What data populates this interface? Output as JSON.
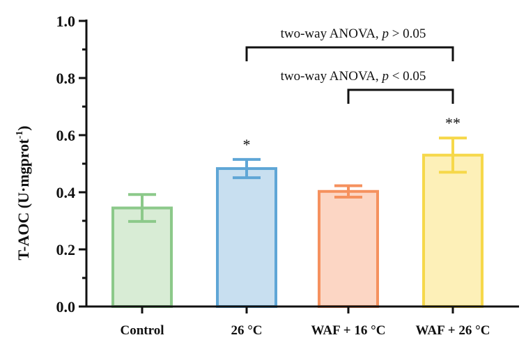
{
  "chart_data": {
    "type": "bar",
    "categories": [
      "Control",
      "26 °C",
      "WAF + 16 °C",
      "WAF + 26 °C"
    ],
    "values": [
      0.345,
      0.483,
      0.403,
      0.53
    ],
    "errors": [
      0.047,
      0.032,
      0.02,
      0.06
    ],
    "significance": [
      "",
      "*",
      "",
      "**"
    ],
    "bar_colors": [
      {
        "fill": "#d8ecd5",
        "stroke": "#8cc98a"
      },
      {
        "fill": "#c8dff0",
        "stroke": "#5fa6d6"
      },
      {
        "fill": "#fcd6c4",
        "stroke": "#f5915e"
      },
      {
        "fill": "#fdf0b8",
        "stroke": "#f6d84a"
      }
    ],
    "ylabel_main": "T-AOC (U·mgprot",
    "ylabel_sup": "-1",
    "ylabel_close": ")",
    "ylim": [
      0,
      1.0
    ],
    "yticks": [
      "0.0",
      "0.2",
      "0.4",
      "0.6",
      "0.8",
      "1.0"
    ],
    "grid": false,
    "comparisons": [
      {
        "from": 1,
        "to": 3,
        "label_prefix": "two-way ANOVA, ",
        "p_symbol": "p",
        "label_suffix": " > 0.05"
      },
      {
        "from": 2,
        "to": 3,
        "label_prefix": "two-way ANOVA, ",
        "p_symbol": "p",
        "label_suffix": " < 0.05"
      }
    ]
  }
}
